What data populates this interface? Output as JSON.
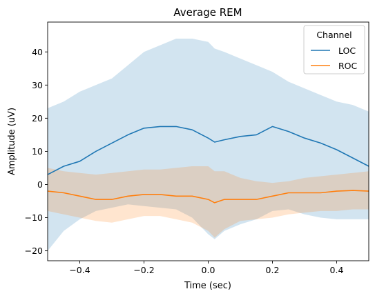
{
  "chart_data": {
    "type": "line",
    "title": "Average REM",
    "xlabel": "Time (sec)",
    "ylabel": "Amplitude (uV)",
    "xlim": [
      -0.5,
      0.5
    ],
    "ylim": [
      -23,
      49
    ],
    "xticks": [
      -0.4,
      -0.2,
      0.0,
      0.2,
      0.4
    ],
    "xtick_labels": [
      "−0.4",
      "−0.2",
      "0.0",
      "0.2",
      "0.4"
    ],
    "yticks": [
      -20,
      -10,
      0,
      10,
      20,
      30,
      40
    ],
    "ytick_labels": [
      "−20",
      "−10",
      "0",
      "10",
      "20",
      "30",
      "40"
    ],
    "grid": false,
    "legend": {
      "title": "Channel",
      "placement": "top-right"
    },
    "series": [
      {
        "name": "LOC",
        "color": "#1f77b4",
        "x": [
          -0.5,
          -0.45,
          -0.4,
          -0.35,
          -0.3,
          -0.25,
          -0.2,
          -0.15,
          -0.1,
          -0.05,
          0.0,
          0.02,
          0.05,
          0.1,
          0.15,
          0.2,
          0.25,
          0.3,
          0.35,
          0.4,
          0.45,
          0.5
        ],
        "y": [
          3,
          5.5,
          7,
          10,
          12.5,
          15,
          17,
          17.5,
          17.5,
          16.5,
          14,
          12.8,
          13.5,
          14.5,
          15,
          17.5,
          16,
          14,
          12.5,
          10.5,
          8,
          5.5
        ],
        "lower": [
          -20,
          -14,
          -10.5,
          -8,
          -7,
          -6,
          -6.5,
          -7,
          -7.5,
          -10,
          -15,
          -16.5,
          -14,
          -12,
          -10.5,
          -8,
          -7.5,
          -9,
          -10,
          -10.5,
          -10.5,
          -10.5
        ],
        "upper": [
          23,
          25,
          28,
          30,
          32,
          36,
          40,
          42,
          44,
          44,
          43,
          41,
          40,
          38,
          36,
          34,
          31,
          29,
          27,
          25,
          24,
          22
        ]
      },
      {
        "name": "ROC",
        "color": "#ff7f0e",
        "x": [
          -0.5,
          -0.45,
          -0.4,
          -0.35,
          -0.3,
          -0.25,
          -0.2,
          -0.15,
          -0.1,
          -0.05,
          0.0,
          0.02,
          0.05,
          0.1,
          0.15,
          0.2,
          0.25,
          0.3,
          0.35,
          0.4,
          0.45,
          0.5
        ],
        "y": [
          -2,
          -2.5,
          -3.5,
          -4.5,
          -4.5,
          -3.5,
          -3,
          -3,
          -3.5,
          -3.5,
          -4.5,
          -5.5,
          -4.5,
          -4.5,
          -4.5,
          -3.5,
          -2.5,
          -2.5,
          -2.5,
          -2,
          -1.8,
          -2
        ],
        "lower": [
          -8,
          -9,
          -10,
          -11,
          -11.5,
          -10.5,
          -9.5,
          -9.5,
          -10.5,
          -11.5,
          -14,
          -16,
          -13.5,
          -11,
          -10.5,
          -10,
          -9,
          -8.5,
          -8,
          -8,
          -7.5,
          -7.5
        ],
        "upper": [
          5,
          4,
          3.5,
          3,
          3.5,
          4,
          4.5,
          4.5,
          5,
          5.5,
          5.5,
          4,
          4,
          2,
          1,
          0.5,
          1,
          2,
          2.5,
          3,
          3.5,
          4
        ]
      }
    ]
  }
}
